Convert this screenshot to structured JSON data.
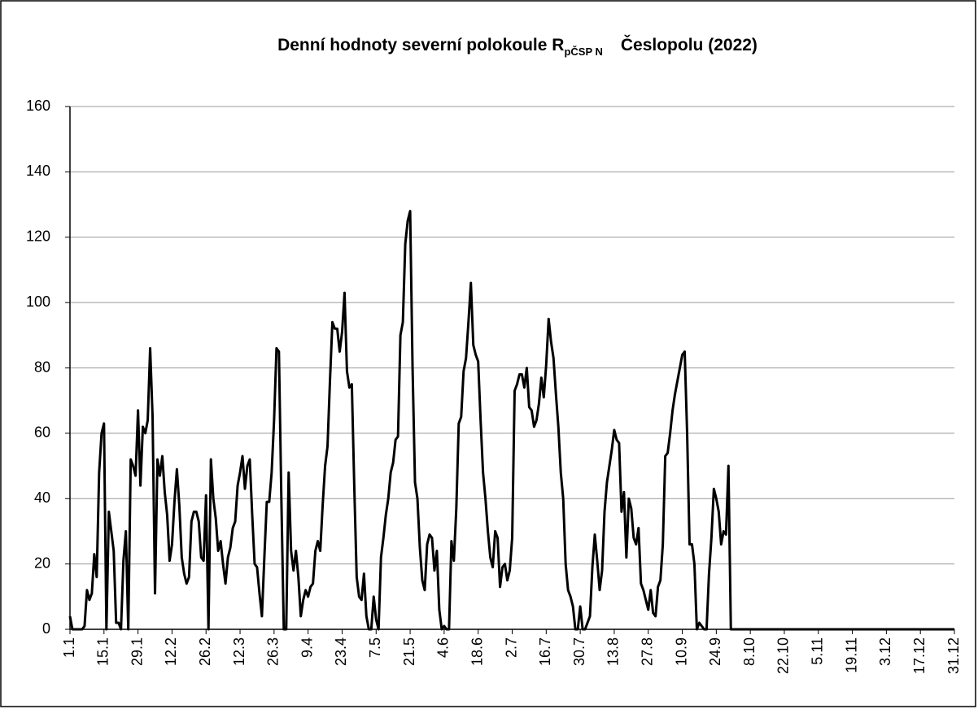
{
  "chart_data": {
    "type": "line",
    "title": "Denní hodnoty severní polokoule R",
    "title_subscript": "pČSP N",
    "title_end": "Česlopolu (2022)",
    "categories": [
      "1.1",
      null,
      null,
      null,
      null,
      null,
      null,
      null,
      null,
      null,
      null,
      null,
      null,
      null,
      "15.1",
      null,
      null,
      null,
      null,
      null,
      null,
      null,
      null,
      null,
      null,
      null,
      null,
      null,
      "29.1",
      null,
      null,
      null,
      null,
      null,
      null,
      null,
      null,
      null,
      null,
      null,
      null,
      null,
      "12.2",
      null,
      null,
      null,
      null,
      null,
      null,
      null,
      null,
      null,
      null,
      null,
      null,
      null,
      "26.2",
      null,
      null,
      null,
      null,
      null,
      null,
      null,
      null,
      null,
      null,
      null,
      null,
      null,
      "12.3",
      null,
      null,
      null,
      null,
      null,
      null,
      null,
      null,
      null,
      null,
      null,
      null,
      null,
      "26.3",
      null,
      null,
      null,
      null,
      null,
      null,
      null,
      null,
      null,
      null,
      null,
      null,
      null,
      "9.4",
      null,
      null,
      null,
      null,
      null,
      null,
      null,
      null,
      null,
      null,
      null,
      null,
      null,
      "23.4",
      null,
      null,
      null,
      null,
      null,
      null,
      null,
      null,
      null,
      null,
      null,
      null,
      null,
      "7.5",
      null,
      null,
      null,
      null,
      null,
      null,
      null,
      null,
      null,
      null,
      null,
      null,
      null,
      "21.5",
      null,
      null,
      null,
      null,
      null,
      null,
      null,
      null,
      null,
      null,
      null,
      null,
      null,
      "4.6",
      null,
      null,
      null,
      null,
      null,
      null,
      null,
      null,
      null,
      null,
      null,
      null,
      null,
      "18.6",
      null,
      null,
      null,
      null,
      null,
      null,
      null,
      null,
      null,
      null,
      null,
      null,
      null,
      "2.7",
      null,
      null,
      null,
      null,
      null,
      null,
      null,
      null,
      null,
      null,
      null,
      null,
      null,
      "16.7",
      null,
      null,
      null,
      null,
      null,
      null,
      null,
      null,
      null,
      null,
      null,
      null,
      null,
      "30.7",
      null,
      null,
      null,
      null,
      null,
      null,
      null,
      null,
      null,
      null,
      null,
      null,
      null,
      "13.8",
      null,
      null,
      null,
      null,
      null,
      null,
      null,
      null,
      null,
      null,
      null,
      null,
      null,
      "27.8",
      null,
      null,
      null,
      null,
      null,
      null,
      null,
      null,
      null,
      null,
      null,
      null,
      null,
      "10.9",
      null,
      null,
      null,
      null,
      null,
      null,
      null,
      null,
      null,
      null,
      null,
      null,
      null,
      "24.9",
      null,
      null,
      null,
      null,
      null,
      null,
      null,
      null,
      null,
      null,
      null,
      null,
      null,
      "8.10",
      null,
      null,
      null,
      null,
      null,
      null,
      null,
      null,
      null,
      null,
      null,
      null,
      null,
      "22.10",
      null,
      null,
      null,
      null,
      null,
      null,
      null,
      null,
      null,
      null,
      null,
      null,
      null,
      "5.11",
      null,
      null,
      null,
      null,
      null,
      null,
      null,
      null,
      null,
      null,
      null,
      null,
      null,
      "19.11",
      null,
      null,
      null,
      null,
      null,
      null,
      null,
      null,
      null,
      null,
      null,
      null,
      null,
      "3.12",
      null,
      null,
      null,
      null,
      null,
      null,
      null,
      null,
      null,
      null,
      null,
      null,
      null,
      "17.12",
      null,
      null,
      null,
      null,
      null,
      null,
      null,
      null,
      null,
      null,
      null,
      null,
      null,
      "31.12"
    ],
    "values": [
      4,
      0,
      0,
      0,
      0,
      0,
      1,
      12,
      9,
      11,
      23,
      16,
      48,
      60,
      63,
      0,
      36,
      30,
      24,
      2,
      2,
      0,
      21,
      30,
      0,
      52,
      50,
      47,
      67,
      44,
      62,
      60,
      64,
      86,
      65,
      11,
      52,
      47,
      53,
      42,
      35,
      21,
      26,
      39,
      49,
      38,
      22,
      17,
      14,
      16,
      33,
      36,
      36,
      33,
      22,
      21,
      41,
      0,
      52,
      40,
      34,
      24,
      27,
      20,
      14,
      22,
      25,
      31,
      33,
      44,
      48,
      53,
      43,
      50,
      52,
      35,
      20,
      19,
      11,
      4,
      22,
      39,
      39,
      48,
      64,
      86,
      85,
      40,
      0,
      0,
      48,
      24,
      18,
      24,
      16,
      4,
      9,
      12,
      10,
      13,
      14,
      24,
      27,
      24,
      38,
      50,
      56,
      76,
      94,
      92,
      92,
      85,
      91,
      103,
      79,
      74,
      75,
      44,
      16,
      10,
      9,
      17,
      4,
      0,
      0,
      10,
      3,
      0,
      22,
      28,
      35,
      40,
      48,
      51,
      58,
      59,
      90,
      94,
      118,
      125,
      128,
      80,
      45,
      40,
      25,
      15,
      12,
      26,
      29,
      28,
      18,
      24,
      6,
      0,
      1,
      0,
      0,
      27,
      21,
      37,
      63,
      65,
      79,
      83,
      94,
      106,
      87,
      84,
      82,
      64,
      48,
      40,
      30,
      22,
      19,
      30,
      28,
      13,
      19,
      20,
      15,
      18,
      28,
      73,
      75,
      78,
      78,
      74,
      80,
      68,
      67,
      62,
      64,
      69,
      77,
      71,
      81,
      95,
      88,
      83,
      72,
      62,
      48,
      40,
      20,
      12,
      10,
      7,
      0,
      0,
      7,
      0,
      0,
      2,
      4,
      19,
      29,
      21,
      12,
      18,
      36,
      45,
      50,
      55,
      61,
      58,
      57,
      36,
      42,
      22,
      40,
      37,
      28,
      26,
      31,
      14,
      12,
      9,
      6,
      12,
      5,
      4,
      13,
      15,
      26,
      53,
      54,
      60,
      67,
      72,
      76,
      80,
      84,
      85,
      60,
      26,
      26,
      20,
      0,
      2,
      1,
      0,
      0,
      17,
      28,
      43,
      40,
      36,
      26,
      30,
      29,
      50,
      0,
      0,
      0,
      0,
      0,
      0,
      0,
      0,
      0,
      0,
      0,
      0,
      0,
      0,
      0,
      0,
      0,
      0,
      0,
      0,
      0,
      0,
      0,
      0,
      0,
      0,
      0,
      0,
      0,
      0,
      0,
      0,
      0,
      0,
      0,
      0,
      0,
      0,
      0,
      0,
      0,
      0,
      0,
      0,
      0,
      0,
      0,
      0,
      0,
      0,
      0,
      0,
      0,
      0,
      0,
      0,
      0,
      0,
      0,
      0,
      0,
      0,
      0,
      0,
      0,
      0,
      0,
      0,
      0,
      0,
      0,
      0,
      0,
      0,
      0,
      0,
      0,
      0,
      0,
      0,
      0,
      0,
      0,
      0,
      0,
      0,
      0,
      0,
      0,
      0,
      0,
      0,
      0
    ],
    "color": "#000000",
    "ylim": [
      0,
      160
    ],
    "yticks": [
      0,
      20,
      40,
      60,
      80,
      100,
      120,
      140,
      160
    ],
    "grid": true
  }
}
